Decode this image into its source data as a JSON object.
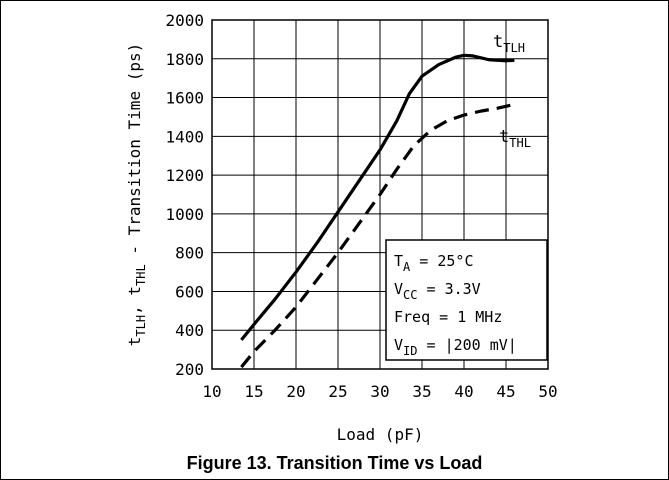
{
  "chart_data": {
    "type": "line",
    "xlabel": "Load (pF)",
    "ylabel": {
      "t1": "t",
      "s1": "TLH",
      "sep": ", ",
      "t2": "t",
      "s2": "THL",
      "rest": " - Transition Time (ps)"
    },
    "xlim": [
      10,
      50
    ],
    "ylim": [
      200,
      2000
    ],
    "xticks": [
      10,
      15,
      20,
      25,
      30,
      35,
      40,
      45,
      50
    ],
    "yticks": [
      200,
      400,
      600,
      800,
      1000,
      1200,
      1400,
      1600,
      1800,
      2000
    ],
    "grid": true,
    "series": [
      {
        "name": {
          "base": "t",
          "sub": "TLH"
        },
        "style": "solid",
        "color": "#000000",
        "x": [
          13.5,
          15,
          17.5,
          20,
          22.5,
          25,
          27.5,
          30,
          32,
          33.5,
          35,
          37,
          39,
          40,
          41,
          42,
          43,
          44,
          45,
          46
        ],
        "y": [
          350,
          430,
          560,
          700,
          850,
          1010,
          1170,
          1330,
          1480,
          1620,
          1710,
          1770,
          1808,
          1818,
          1815,
          1805,
          1795,
          1792,
          1790,
          1792
        ]
      },
      {
        "name": {
          "base": "t",
          "sub": "THL"
        },
        "style": "dashed",
        "color": "#000000",
        "x": [
          13.5,
          15,
          17.5,
          20,
          22.5,
          25,
          27.5,
          30,
          32,
          34,
          36,
          38,
          40,
          42,
          44,
          46
        ],
        "y": [
          210,
          290,
          400,
          520,
          660,
          800,
          950,
          1100,
          1230,
          1350,
          1430,
          1480,
          1510,
          1530,
          1545,
          1565
        ]
      }
    ],
    "annotation": {
      "lines": [
        {
          "base": "T",
          "sub": "A",
          "rest": " = 25°C"
        },
        {
          "base": "V",
          "sub": "CC",
          "rest": " = 3.3V"
        },
        {
          "base": "Freq = 1 MHz",
          "sub": "",
          "rest": ""
        },
        {
          "base": "V",
          "sub": "ID",
          "rest": " = |200 mV|"
        }
      ]
    }
  },
  "caption": "Figure 13. Transition Time vs Load"
}
